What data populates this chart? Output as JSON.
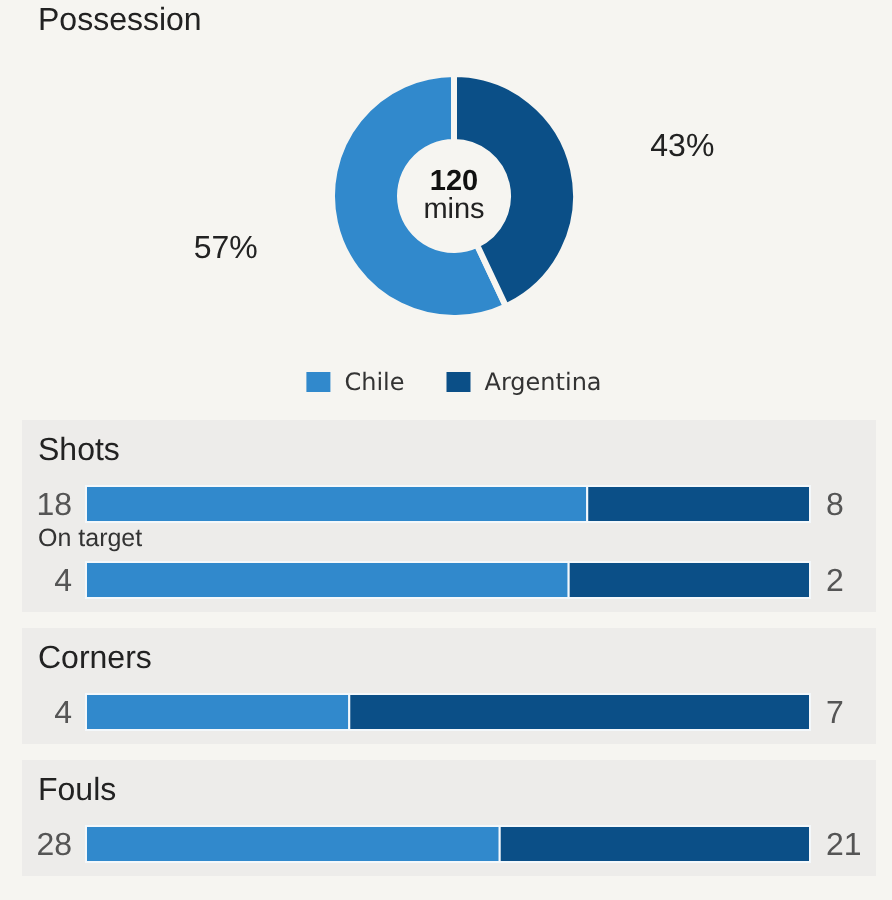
{
  "chart_data": [
    {
      "type": "donut",
      "title": "Possession",
      "categories": [
        "Chile",
        "Argentina"
      ],
      "values": [
        57,
        43
      ],
      "colors": [
        "#3189cc",
        "#0b4f87"
      ],
      "value_labels": [
        "57%",
        "43%"
      ],
      "annotations": [
        "120 mins"
      ],
      "legend": "bottom"
    },
    {
      "type": "bar",
      "title": "Shots",
      "orientation": "horizontal",
      "stacked": true,
      "categories": [
        null
      ],
      "xlim": [
        0,
        26
      ],
      "data_labels": true,
      "series": [
        {
          "color": "#3189cc",
          "values": [
            18
          ]
        },
        {
          "color": "#0b4f87",
          "values": [
            8
          ]
        }
      ]
    },
    {
      "type": "bar",
      "subtitle": "On target",
      "orientation": "horizontal",
      "stacked": true,
      "categories": [
        null
      ],
      "xlim": [
        0,
        6
      ],
      "data_labels": true,
      "series": [
        {
          "color": "#3189cc",
          "values": [
            4
          ]
        },
        {
          "color": "#0b4f87",
          "values": [
            2
          ]
        }
      ]
    },
    {
      "type": "bar",
      "title": "Corners",
      "orientation": "horizontal",
      "stacked": true,
      "categories": [
        null
      ],
      "xlim": [
        0,
        11
      ],
      "data_labels": true,
      "series": [
        {
          "color": "#3189cc",
          "values": [
            4
          ]
        },
        {
          "color": "#0b4f87",
          "values": [
            7
          ]
        }
      ]
    },
    {
      "type": "bar",
      "title": "Fouls",
      "orientation": "horizontal",
      "stacked": true,
      "categories": [
        null
      ],
      "xlim": [
        0,
        49
      ],
      "data_labels": true,
      "series": [
        {
          "color": "#3189cc",
          "values": [
            28
          ]
        },
        {
          "color": "#0b4f87",
          "values": [
            21
          ]
        }
      ]
    }
  ]
}
